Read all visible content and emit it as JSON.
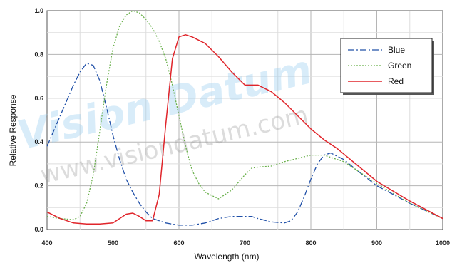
{
  "chart_data": {
    "type": "line",
    "title": "",
    "xlabel": "Wavelength (nm)",
    "ylabel": "Relative Response",
    "xlim": [
      400,
      1000
    ],
    "ylim": [
      0,
      1.0
    ],
    "xticks": [
      400,
      500,
      600,
      700,
      800,
      900,
      1000
    ],
    "yticks": [
      0.0,
      0.2,
      0.4,
      0.6,
      0.8,
      1.0
    ],
    "ytick_labels": [
      "0.0",
      "0.2",
      "0.4",
      "0.6",
      "0.8",
      "1.0"
    ],
    "grid": true,
    "legend_position": "top-right",
    "series": [
      {
        "name": "Blue",
        "color": "#2050a8",
        "style": "dash-dot",
        "x": [
          400,
          420,
          440,
          450,
          460,
          470,
          480,
          490,
          500,
          510,
          520,
          530,
          540,
          550,
          560,
          580,
          600,
          620,
          640,
          660,
          680,
          700,
          710,
          720,
          740,
          760,
          770,
          780,
          790,
          800,
          810,
          820,
          830,
          850,
          870,
          900,
          950,
          1000
        ],
        "y": [
          0.38,
          0.52,
          0.66,
          0.72,
          0.76,
          0.75,
          0.68,
          0.56,
          0.43,
          0.32,
          0.23,
          0.17,
          0.12,
          0.08,
          0.05,
          0.03,
          0.02,
          0.02,
          0.03,
          0.05,
          0.06,
          0.06,
          0.06,
          0.05,
          0.035,
          0.03,
          0.04,
          0.08,
          0.15,
          0.23,
          0.3,
          0.34,
          0.35,
          0.32,
          0.27,
          0.2,
          0.12,
          0.05
        ]
      },
      {
        "name": "Green",
        "color": "#6ab04c",
        "style": "dotted",
        "x": [
          400,
          420,
          440,
          450,
          460,
          470,
          480,
          490,
          500,
          510,
          520,
          530,
          540,
          550,
          560,
          570,
          580,
          590,
          600,
          610,
          620,
          630,
          640,
          660,
          680,
          700,
          710,
          720,
          740,
          760,
          800,
          820,
          850,
          900,
          950,
          1000
        ],
        "y": [
          0.06,
          0.05,
          0.045,
          0.06,
          0.12,
          0.25,
          0.45,
          0.66,
          0.83,
          0.93,
          0.98,
          1.0,
          0.99,
          0.96,
          0.92,
          0.86,
          0.78,
          0.66,
          0.52,
          0.38,
          0.27,
          0.21,
          0.17,
          0.14,
          0.18,
          0.25,
          0.28,
          0.285,
          0.29,
          0.31,
          0.34,
          0.34,
          0.31,
          0.21,
          0.12,
          0.05
        ]
      },
      {
        "name": "Red",
        "color": "#e0252b",
        "style": "solid",
        "x": [
          400,
          420,
          440,
          460,
          480,
          500,
          510,
          520,
          530,
          540,
          550,
          560,
          570,
          580,
          590,
          600,
          610,
          620,
          640,
          660,
          680,
          700,
          720,
          740,
          760,
          780,
          800,
          820,
          840,
          860,
          880,
          900,
          950,
          1000
        ],
        "y": [
          0.08,
          0.05,
          0.03,
          0.025,
          0.025,
          0.03,
          0.05,
          0.07,
          0.075,
          0.06,
          0.04,
          0.04,
          0.16,
          0.48,
          0.78,
          0.88,
          0.89,
          0.88,
          0.85,
          0.79,
          0.72,
          0.66,
          0.66,
          0.63,
          0.58,
          0.52,
          0.46,
          0.41,
          0.37,
          0.32,
          0.27,
          0.22,
          0.13,
          0.05
        ]
      }
    ]
  },
  "watermark": {
    "brand": "Vision Datum",
    "url": "www.visiondatum.com"
  }
}
